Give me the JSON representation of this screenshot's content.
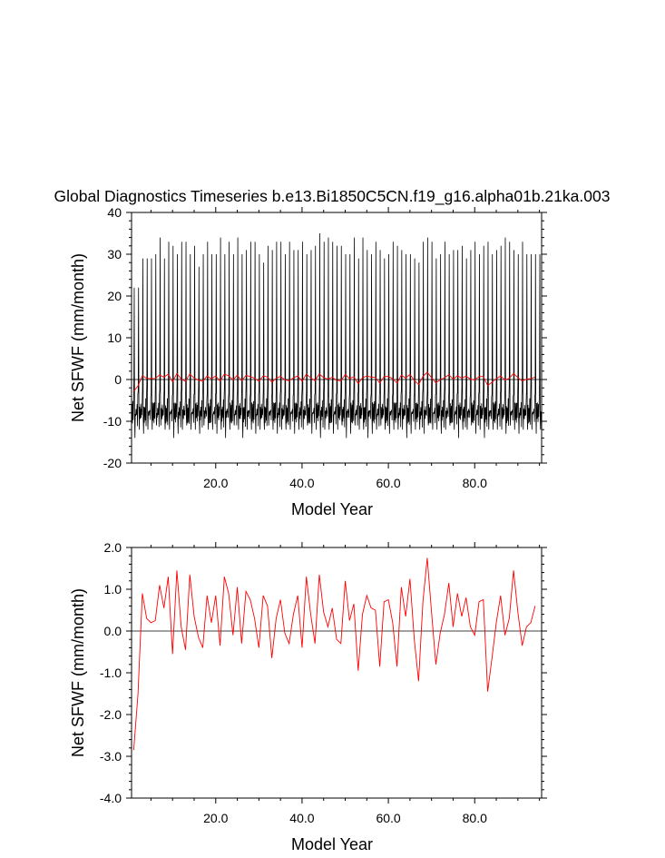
{
  "title": "Global Diagnostics Timeseries b.e13.Bi1850C5CN.f19_g16.alpha01b.21ka.003",
  "colors": {
    "monthly": "#000000",
    "annual": "#ff0000",
    "zero_line": "#000000"
  },
  "chart_data": [
    {
      "type": "line",
      "xlabel": "Model Year",
      "ylabel": "Net SFWF (mm/month)",
      "xlim": [
        0.5,
        95.5
      ],
      "ylim": [
        -20,
        40
      ],
      "x_ticks": [
        20,
        40,
        60,
        80
      ],
      "x_tick_labels": [
        "20.0",
        "40.0",
        "60.0",
        "80.0"
      ],
      "y_ticks": [
        -20,
        -10,
        0,
        10,
        20,
        30,
        40
      ],
      "y_tick_labels": [
        "-20",
        "-10",
        "0",
        "10",
        "20",
        "30",
        "40"
      ],
      "reference_line": 0,
      "series": [
        {
          "kind": "monthly",
          "color": "#000000",
          "x_start": 0.54,
          "x_step": 0.0833,
          "seasonal_cycle": [
            -8,
            -7,
            -9,
            -6,
            -10,
            -5,
            -2,
            1,
            -8,
            -11,
            -7,
            -9
          ],
          "annual_peaks": [
            22,
            22,
            29,
            29,
            29,
            30,
            34,
            29,
            33,
            32,
            30,
            33,
            33,
            30,
            32,
            27,
            30,
            33,
            30,
            30,
            34,
            30,
            33,
            30,
            34,
            30,
            31,
            33,
            33,
            30,
            28,
            32,
            31,
            33,
            33,
            30,
            33,
            31,
            31,
            33,
            30,
            31,
            32,
            35,
            33,
            34,
            33,
            32,
            32,
            30,
            30,
            34,
            29,
            34,
            31,
            30,
            33,
            31,
            29,
            30,
            33,
            32,
            31,
            30,
            30,
            29,
            28,
            33,
            34,
            33,
            29,
            30,
            33,
            30,
            31,
            31,
            32,
            29,
            31,
            33,
            30,
            32,
            33,
            30,
            31,
            32,
            34,
            33,
            31,
            30,
            33,
            30,
            30,
            30,
            30
          ],
          "annual_troughs": [
            -14,
            -12,
            -13,
            -12,
            -12,
            -11,
            -11,
            -12,
            -12,
            -14,
            -13,
            -12,
            -11,
            -12,
            -12,
            -13,
            -11,
            -12,
            -12,
            -13,
            -12,
            -14,
            -12,
            -11,
            -12,
            -14,
            -12,
            -12,
            -13,
            -12,
            -12,
            -11,
            -12,
            -13,
            -12,
            -12,
            -12,
            -13,
            -12,
            -12,
            -11,
            -13,
            -12,
            -14,
            -12,
            -12,
            -13,
            -12,
            -11,
            -14,
            -13,
            -11,
            -12,
            -12,
            -14,
            -13,
            -12,
            -11,
            -12,
            -13,
            -12,
            -12,
            -12,
            -14,
            -13,
            -12,
            -12,
            -13,
            -11,
            -12,
            -12,
            -13,
            -12,
            -11,
            -12,
            -14,
            -12,
            -12,
            -11,
            -13,
            -12,
            -14,
            -12,
            -12,
            -12,
            -12,
            -13,
            -11,
            -12,
            -13,
            -12,
            -12,
            -12,
            -13,
            -12
          ]
        },
        {
          "kind": "annual",
          "color": "#ff0000",
          "x_start": 1,
          "x_step": 1,
          "values": [
            -2.85,
            -1.5,
            0.9,
            0.3,
            0.2,
            0.25,
            1.1,
            0.55,
            1.3,
            -0.55,
            1.45,
            0.1,
            -0.45,
            1.35,
            0.35,
            -0.15,
            -0.4,
            0.85,
            0.2,
            0.85,
            -0.35,
            1.3,
            0.9,
            -0.1,
            1.05,
            -0.3,
            0.95,
            0.75,
            0.3,
            -0.4,
            0.85,
            0.6,
            -0.65,
            0.3,
            0.75,
            -0.05,
            -0.3,
            0.4,
            0.85,
            -0.4,
            1.3,
            0.4,
            -0.3,
            1.35,
            0.45,
            0.1,
            0.55,
            -0.2,
            -0.3,
            1.2,
            0.25,
            0.65,
            -0.95,
            0.4,
            0.85,
            0.55,
            0.5,
            -0.85,
            0.7,
            0.75,
            0.2,
            -0.85,
            1.05,
            0.35,
            1.25,
            -0.2,
            -1.2,
            0.7,
            1.75,
            0.45,
            -0.8,
            -0.05,
            0.4,
            1.15,
            0.1,
            0.9,
            0.35,
            0.8,
            0.1,
            -0.1,
            0.7,
            0.75,
            -1.45,
            -0.65,
            0.2,
            0.85,
            -0.1,
            0.3,
            1.45,
            0.45,
            -0.35,
            0.1,
            0.2,
            0.6
          ]
        }
      ]
    },
    {
      "type": "line",
      "xlabel": "Model Year",
      "ylabel": "Net SFWF (mm/month)",
      "xlim": [
        0.5,
        95.5
      ],
      "ylim": [
        -4,
        2
      ],
      "x_ticks": [
        20,
        40,
        60,
        80
      ],
      "x_tick_labels": [
        "20.0",
        "40.0",
        "60.0",
        "80.0"
      ],
      "y_ticks": [
        -4,
        -3,
        -2,
        -1,
        0,
        1,
        2
      ],
      "y_tick_labels": [
        "-4.0",
        "-3.0",
        "-2.0",
        "-1.0",
        "0.0",
        "1.0",
        "2.0"
      ],
      "reference_line": 0,
      "series": [
        {
          "kind": "annual",
          "color": "#ff0000",
          "x_start": 1,
          "x_step": 1,
          "values": [
            -2.85,
            -1.5,
            0.9,
            0.3,
            0.2,
            0.25,
            1.1,
            0.55,
            1.3,
            -0.55,
            1.45,
            0.1,
            -0.45,
            1.35,
            0.35,
            -0.15,
            -0.4,
            0.85,
            0.2,
            0.85,
            -0.35,
            1.3,
            0.9,
            -0.1,
            1.05,
            -0.3,
            0.95,
            0.75,
            0.3,
            -0.4,
            0.85,
            0.6,
            -0.65,
            0.3,
            0.75,
            -0.05,
            -0.3,
            0.4,
            0.85,
            -0.4,
            1.3,
            0.4,
            -0.3,
            1.35,
            0.45,
            0.1,
            0.55,
            -0.2,
            -0.3,
            1.2,
            0.25,
            0.65,
            -0.95,
            0.4,
            0.85,
            0.55,
            0.5,
            -0.85,
            0.7,
            0.75,
            0.2,
            -0.85,
            1.05,
            0.35,
            1.25,
            -0.2,
            -1.2,
            0.7,
            1.75,
            0.45,
            -0.8,
            -0.05,
            0.4,
            1.15,
            0.1,
            0.9,
            0.35,
            0.8,
            0.1,
            -0.1,
            0.7,
            0.75,
            -1.45,
            -0.65,
            0.2,
            0.85,
            -0.1,
            0.3,
            1.45,
            0.45,
            -0.35,
            0.1,
            0.2,
            0.6
          ]
        }
      ]
    }
  ]
}
